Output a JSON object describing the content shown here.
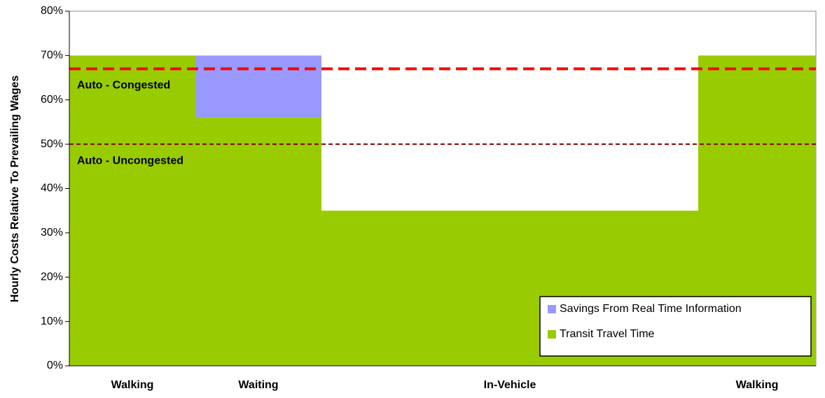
{
  "chart_data": {
    "type": "bar",
    "stacked": true,
    "categories": [
      "Walking",
      "Waiting",
      "In-Vehicle",
      "Walking"
    ],
    "series": [
      {
        "name": "Transit Travel Time",
        "color": "#99cc00",
        "values": [
          70,
          56,
          35,
          70
        ]
      },
      {
        "name": "Savings From Real Time Information",
        "color": "#9999ff",
        "values": [
          0,
          14,
          0,
          0
        ]
      }
    ],
    "reference_lines": [
      {
        "label": "Auto - Congested",
        "value": 67,
        "color": "#ff0000"
      },
      {
        "label": "Auto - Uncongested",
        "value": 50,
        "color": "#800000"
      }
    ],
    "y_label": "Hourly Costs Relative To Prevailing Wages",
    "ylim": [
      0,
      80
    ],
    "yticks": [
      {
        "value": 0,
        "label": "0%"
      },
      {
        "value": 10,
        "label": "10%"
      },
      {
        "value": 20,
        "label": "20%"
      },
      {
        "value": 30,
        "label": "30%"
      },
      {
        "value": 40,
        "label": "40%"
      },
      {
        "value": 50,
        "label": "50%"
      },
      {
        "value": 60,
        "label": "60%"
      },
      {
        "value": 70,
        "label": "70%"
      },
      {
        "value": 80,
        "label": "80%"
      }
    ],
    "legend": "bottom-right"
  }
}
